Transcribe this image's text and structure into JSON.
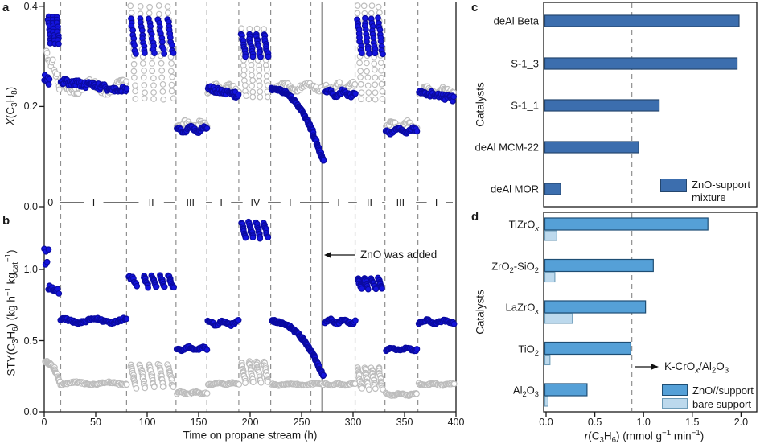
{
  "figure": {
    "panel_labels": {
      "a": "a",
      "b": "b",
      "c": "c",
      "d": "d"
    },
    "colors": {
      "blue_point": "#1414dd",
      "blue_point_edge": "#0a0aa0",
      "gray_point_edge": "#bcbcbc",
      "gray_point_fill": "#ffffff",
      "bar_dark_blue": "#3c6eae",
      "bar_dark_blue_edge": "#24466e",
      "bar_medium_blue": "#55a0d7",
      "bar_medium_blue_edge": "#1e4e74",
      "bar_light_blue": "#bcd9ed",
      "bar_light_blue_edge": "#6d9cb8",
      "dashed_line": "#909090",
      "axis": "#1a1a1a"
    }
  },
  "chart_data": [
    {
      "id": "a",
      "type": "scatter",
      "ylabel_html": "<i>X</i>(C<sub>3</sub>H<sub>8</sub>)",
      "xlim": [
        0,
        400
      ],
      "ylim": [
        0,
        0.41
      ],
      "yticks": [
        "0.0",
        "0.2",
        "0.4"
      ],
      "ytick_values": [
        0,
        0.2,
        0.4
      ],
      "dashed_boundaries_h": [
        16,
        80,
        128,
        158,
        189,
        220,
        259,
        302,
        331,
        363
      ],
      "solid_line_h": 270,
      "phase_labels": [
        {
          "t": 6,
          "label": "0"
        },
        {
          "t": 48,
          "label": "I"
        },
        {
          "t": 104,
          "label": "II"
        },
        {
          "t": 142,
          "label": "III"
        },
        {
          "t": 172,
          "label": "I"
        },
        {
          "t": 205,
          "label": "IV"
        },
        {
          "t": 239,
          "label": "I"
        },
        {
          "t": 286,
          "label": "I"
        },
        {
          "t": 316,
          "label": "II"
        },
        {
          "t": 346,
          "label": "III"
        },
        {
          "t": 381,
          "label": "I"
        }
      ],
      "series_names": [
        "blue filled circles",
        "gray open circles"
      ],
      "clusters": [
        {
          "s": "gray",
          "k": "drift",
          "t": [
            2,
            15
          ],
          "y": [
            0.31,
            0.243
          ]
        },
        {
          "s": "blue",
          "k": "band",
          "t": [
            0,
            5
          ],
          "y": [
            0.245,
            0.262
          ]
        },
        {
          "s": "blue",
          "k": "cycles",
          "t": [
            3,
            15
          ],
          "y": [
            0.325,
            0.378
          ],
          "n": 3
        },
        {
          "s": "gray",
          "k": "band",
          "t": [
            16,
            80
          ],
          "y": [
            0.228,
            0.25
          ]
        },
        {
          "s": "blue",
          "k": "drift",
          "t": [
            16,
            80
          ],
          "y": [
            0.25,
            0.232
          ]
        },
        {
          "s": "gray",
          "k": "cycles",
          "t": [
            82,
            127
          ],
          "y": [
            0.215,
            0.4
          ],
          "n": 5
        },
        {
          "s": "blue",
          "k": "cycles",
          "t": [
            82,
            127
          ],
          "y": [
            0.305,
            0.375
          ],
          "n": 5
        },
        {
          "s": "gray",
          "k": "band",
          "t": [
            129,
            158
          ],
          "y": [
            0.158,
            0.172
          ]
        },
        {
          "s": "blue",
          "k": "band",
          "t": [
            129,
            158
          ],
          "y": [
            0.149,
            0.159
          ]
        },
        {
          "s": "gray",
          "k": "band",
          "t": [
            159,
            189
          ],
          "y": [
            0.228,
            0.246
          ]
        },
        {
          "s": "blue",
          "k": "drift",
          "t": [
            159,
            189
          ],
          "y": [
            0.236,
            0.222
          ]
        },
        {
          "s": "gray",
          "k": "cycles",
          "t": [
            190,
            219
          ],
          "y": [
            0.22,
            0.355
          ],
          "n": 4
        },
        {
          "s": "blue",
          "k": "cycles",
          "t": [
            190,
            219
          ],
          "y": [
            0.3,
            0.345
          ],
          "n": 4
        },
        {
          "s": "gray",
          "k": "band",
          "t": [
            221,
            270
          ],
          "y": [
            0.232,
            0.247
          ]
        },
        {
          "s": "blue",
          "k": "decay",
          "t": [
            221,
            271
          ],
          "y": [
            0.235,
            0.09
          ]
        },
        {
          "s": "gray",
          "k": "band",
          "t": [
            273,
            302
          ],
          "y": [
            0.232,
            0.247
          ]
        },
        {
          "s": "blue",
          "k": "band",
          "t": [
            273,
            302
          ],
          "y": [
            0.22,
            0.232
          ]
        },
        {
          "s": "gray",
          "k": "cycles",
          "t": [
            303,
            330
          ],
          "y": [
            0.215,
            0.4
          ],
          "n": 4
        },
        {
          "s": "blue",
          "k": "cycles",
          "t": [
            303,
            330
          ],
          "y": [
            0.305,
            0.375
          ],
          "n": 4
        },
        {
          "s": "gray",
          "k": "band",
          "t": [
            332,
            362
          ],
          "y": [
            0.157,
            0.17
          ]
        },
        {
          "s": "blue",
          "k": "band",
          "t": [
            332,
            362
          ],
          "y": [
            0.147,
            0.157
          ]
        },
        {
          "s": "gray",
          "k": "band",
          "t": [
            364,
            398
          ],
          "y": [
            0.225,
            0.24
          ]
        },
        {
          "s": "blue",
          "k": "drift",
          "t": [
            364,
            398
          ],
          "y": [
            0.23,
            0.215
          ]
        }
      ]
    },
    {
      "id": "b",
      "type": "scatter",
      "ylabel_html": "STY(C<sub>3</sub>H<sub>6</sub>) (kg h<sup>−1</sup> kg<sub>cat</sub><sup>−1</sup>)",
      "xlabel": "Time on propane stream (h)",
      "xlim": [
        0,
        400
      ],
      "ylim": [
        0,
        1.4
      ],
      "yticks": [
        "0.0",
        "0.5",
        "1.0"
      ],
      "ytick_values": [
        0,
        0.5,
        1.0
      ],
      "xticks": [
        "0",
        "50",
        "100",
        "150",
        "200",
        "250",
        "300",
        "350",
        "400"
      ],
      "xtick_values": [
        0,
        50,
        100,
        150,
        200,
        250,
        300,
        350,
        400
      ],
      "annotation": {
        "text": "ZnO was added",
        "points_to_h": 270
      },
      "clusters": [
        {
          "s": "gray",
          "k": "decay",
          "t": [
            1,
            15
          ],
          "y": [
            0.35,
            0.205
          ]
        },
        {
          "s": "blue",
          "k": "band",
          "t": [
            0,
            4
          ],
          "y": [
            1.04,
            1.13
          ]
        },
        {
          "s": "blue",
          "k": "drift",
          "t": [
            4,
            14
          ],
          "y": [
            0.875,
            0.845
          ]
        },
        {
          "s": "gray",
          "k": "band",
          "t": [
            16,
            80
          ],
          "y": [
            0.19,
            0.21
          ]
        },
        {
          "s": "blue",
          "k": "band",
          "t": [
            16,
            80
          ],
          "y": [
            0.625,
            0.655
          ]
        },
        {
          "s": "gray",
          "k": "cycles",
          "t": [
            82,
            127
          ],
          "y": [
            0.17,
            0.335
          ],
          "n": 5
        },
        {
          "s": "blue",
          "k": "drift",
          "t": [
            82,
            90
          ],
          "y": [
            0.955,
            0.9
          ]
        },
        {
          "s": "blue",
          "k": "cycles",
          "t": [
            95,
            127
          ],
          "y": [
            0.875,
            0.955
          ],
          "n": 4
        },
        {
          "s": "gray",
          "k": "band",
          "t": [
            129,
            158
          ],
          "y": [
            0.125,
            0.14
          ]
        },
        {
          "s": "blue",
          "k": "band",
          "t": [
            129,
            158
          ],
          "y": [
            0.43,
            0.455
          ]
        },
        {
          "s": "gray",
          "k": "band",
          "t": [
            159,
            189
          ],
          "y": [
            0.19,
            0.205
          ]
        },
        {
          "s": "blue",
          "k": "band",
          "t": [
            159,
            189
          ],
          "y": [
            0.61,
            0.64
          ]
        },
        {
          "s": "gray",
          "k": "cycles",
          "t": [
            190,
            219
          ],
          "y": [
            0.205,
            0.35
          ],
          "n": 4
        },
        {
          "s": "blue",
          "k": "cycles",
          "t": [
            190,
            219
          ],
          "y": [
            1.22,
            1.33
          ],
          "n": 4
        },
        {
          "s": "gray",
          "k": "band",
          "t": [
            221,
            271
          ],
          "y": [
            0.185,
            0.2
          ]
        },
        {
          "s": "blue",
          "k": "decay",
          "t": [
            221,
            271
          ],
          "y": [
            0.635,
            0.25
          ]
        },
        {
          "s": "gray",
          "k": "band",
          "t": [
            273,
            302
          ],
          "y": [
            0.185,
            0.2
          ]
        },
        {
          "s": "blue",
          "k": "band",
          "t": [
            273,
            302
          ],
          "y": [
            0.62,
            0.65
          ]
        },
        {
          "s": "gray",
          "k": "cycles",
          "t": [
            303,
            330
          ],
          "y": [
            0.16,
            0.31
          ],
          "n": 4
        },
        {
          "s": "blue",
          "k": "cycles",
          "t": [
            303,
            330
          ],
          "y": [
            0.865,
            0.935
          ],
          "n": 4
        },
        {
          "s": "gray",
          "k": "band",
          "t": [
            332,
            362
          ],
          "y": [
            0.115,
            0.13
          ]
        },
        {
          "s": "blue",
          "k": "band",
          "t": [
            332,
            362
          ],
          "y": [
            0.43,
            0.45
          ]
        },
        {
          "s": "gray",
          "k": "band",
          "t": [
            364,
            398
          ],
          "y": [
            0.185,
            0.2
          ]
        },
        {
          "s": "blue",
          "k": "band",
          "t": [
            364,
            398
          ],
          "y": [
            0.62,
            0.645
          ]
        }
      ]
    },
    {
      "id": "c",
      "type": "bar",
      "orientation": "horizontal",
      "ylabel": "Catalysts",
      "categories": [
        "deAl Beta",
        "S-1_3",
        "S-1_1",
        "deAl MCM-22",
        "deAl MOR"
      ],
      "values": [
        1.98,
        1.96,
        1.16,
        0.95,
        0.15
      ],
      "xlim": [
        0,
        2.16
      ],
      "dashed_reference_x": 0.88,
      "legend": [
        {
          "label": "ZnO-support mixture",
          "color_key": "bar_dark_blue",
          "border_key": "bar_dark_blue_edge"
        }
      ]
    },
    {
      "id": "d",
      "type": "bar",
      "orientation": "horizontal",
      "ylabel": "Catalysts",
      "xlabel_html": "<i>r</i>(C<sub>3</sub>H<sub>6</sub>) (mmol g<sup>−1</sup> min<sup>−1</sup>)",
      "categories_html": [
        "TiZrO<sub><i>x</i></sub>",
        "ZrO<sub>2</sub>-SiO<sub>2</sub>",
        "LaZrO<sub><i>x</i></sub>",
        "TiO<sub>2</sub>",
        "Al<sub>2</sub>O<sub>3</sub>"
      ],
      "series": [
        {
          "name": "ZnO//support",
          "values": [
            1.66,
            1.1,
            1.02,
            0.87,
            0.42
          ],
          "color_key": "bar_medium_blue",
          "border_key": "bar_medium_blue_edge"
        },
        {
          "name": "bare support",
          "values": [
            0.11,
            0.09,
            0.27,
            0.04,
            0.02
          ],
          "color_key": "bar_light_blue",
          "border_key": "bar_light_blue_edge"
        }
      ],
      "xticks": [
        "0.0",
        "0.5",
        "1.0",
        "1.5",
        "2.0"
      ],
      "xtick_values": [
        0,
        0.5,
        1,
        1.5,
        2
      ],
      "xlim": [
        0,
        2.16
      ],
      "dashed_reference_x": 0.88,
      "reference_label_html": "K-CrO<sub><i>x</i></sub>/Al<sub>2</sub>O<sub>3</sub>"
    }
  ]
}
